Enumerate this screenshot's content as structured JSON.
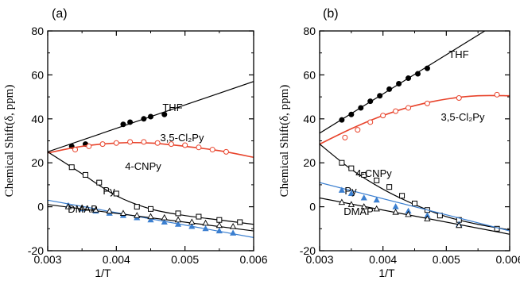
{
  "chart_data": [
    {
      "type": "scatter",
      "panel_label": "(a)",
      "xlabel": "1/T",
      "ylabel": "Chemical Shift(δ, ppm)",
      "xlim": [
        0.003,
        0.006
      ],
      "ylim": [
        -20,
        80
      ],
      "xticks": [
        "0.003",
        "0.004",
        "0.005",
        "0.006"
      ],
      "yticks": [
        "-20",
        "0",
        "20",
        "40",
        "60",
        "80"
      ],
      "series": [
        {
          "name": "THF",
          "color": "#000000",
          "marker": "filled-circle",
          "fit": "linear",
          "fit_line": [
            [
              0.003,
              25
            ],
            [
              0.006,
              57
            ]
          ],
          "points": [
            [
              0.00335,
              27.5
            ],
            [
              0.00355,
              28.5
            ],
            [
              0.0041,
              37.5
            ],
            [
              0.0042,
              38.5
            ],
            [
              0.0044,
              40
            ],
            [
              0.0045,
              41
            ],
            [
              0.0047,
              42
            ]
          ]
        },
        {
          "name": "3,5-Cl₂Py",
          "color": "#e8432b",
          "marker": "open-circle",
          "fit": "curve",
          "fit_line": [
            [
              0.003,
              24.5
            ],
            [
              0.0035,
              27.5
            ],
            [
              0.004,
              29
            ],
            [
              0.0045,
              29
            ],
            [
              0.005,
              27.5
            ],
            [
              0.0055,
              25.5
            ],
            [
              0.006,
              22.5
            ]
          ],
          "points": [
            [
              0.0034,
              26
            ],
            [
              0.0036,
              27.5
            ],
            [
              0.0038,
              28.5
            ],
            [
              0.004,
              29
            ],
            [
              0.0042,
              29.5
            ],
            [
              0.0044,
              29.5
            ],
            [
              0.0046,
              29
            ],
            [
              0.0048,
              28.5
            ],
            [
              0.005,
              28
            ],
            [
              0.0052,
              27
            ],
            [
              0.0054,
              26
            ],
            [
              0.0056,
              25
            ]
          ]
        },
        {
          "name": "4-CNPy",
          "color": "#000000",
          "marker": "open-square",
          "fit": "curve",
          "fit_line": [
            [
              0.003,
              25
            ],
            [
              0.0035,
              15
            ],
            [
              0.004,
              5
            ],
            [
              0.0045,
              -1
            ],
            [
              0.005,
              -4
            ],
            [
              0.0055,
              -6
            ],
            [
              0.006,
              -8
            ]
          ],
          "points": [
            [
              0.00335,
              18
            ],
            [
              0.00355,
              14.5
            ],
            [
              0.00375,
              11
            ],
            [
              0.004,
              6
            ],
            [
              0.0043,
              0
            ],
            [
              0.0045,
              -1
            ],
            [
              0.0049,
              -3
            ],
            [
              0.0052,
              -4.5
            ],
            [
              0.0055,
              -6
            ],
            [
              0.0058,
              -7
            ]
          ]
        },
        {
          "name": "Py",
          "color": "#3b7fd0",
          "marker": "filled-triangle",
          "fit": "linear",
          "fit_line": [
            [
              0.003,
              3
            ],
            [
              0.006,
              -14
            ]
          ],
          "points": [
            [
              0.0033,
              0.5
            ],
            [
              0.0035,
              -1
            ],
            [
              0.0037,
              -2
            ],
            [
              0.0039,
              -3
            ],
            [
              0.0041,
              -4
            ],
            [
              0.0043,
              -5
            ],
            [
              0.0045,
              -6
            ],
            [
              0.0047,
              -7
            ],
            [
              0.0049,
              -8
            ],
            [
              0.0051,
              -9
            ],
            [
              0.0053,
              -10
            ],
            [
              0.0055,
              -11
            ],
            [
              0.0057,
              -12
            ]
          ]
        },
        {
          "name": "DMAP",
          "color": "#000000",
          "marker": "open-triangle",
          "fit": "linear",
          "fit_line": [
            [
              0.003,
              1
            ],
            [
              0.006,
              -11
            ]
          ],
          "points": [
            [
              0.0033,
              0
            ],
            [
              0.0035,
              -0.5
            ],
            [
              0.0037,
              -1.5
            ],
            [
              0.0039,
              -2
            ],
            [
              0.0041,
              -3
            ],
            [
              0.0043,
              -4
            ],
            [
              0.0045,
              -4.5
            ],
            [
              0.0047,
              -5
            ],
            [
              0.0049,
              -6
            ],
            [
              0.0051,
              -7
            ],
            [
              0.0053,
              -7.5
            ],
            [
              0.0055,
              -8.5
            ],
            [
              0.0057,
              -9
            ]
          ]
        }
      ]
    },
    {
      "type": "scatter",
      "panel_label": "(b)",
      "xlabel": "1/T",
      "ylabel": "Chemical Shift(δ, ppm)",
      "xlim": [
        0.003,
        0.006
      ],
      "ylim": [
        -20,
        80
      ],
      "xticks": [
        "0.003",
        "0.004",
        "0.005",
        "0.006"
      ],
      "yticks": [
        "-20",
        "0",
        "20",
        "40",
        "60",
        "80"
      ],
      "series": [
        {
          "name": "THF",
          "color": "#000000",
          "marker": "filled-circle",
          "fit": "linear",
          "fit_line": [
            [
              0.003,
              33.5
            ],
            [
              0.006,
              87
            ]
          ],
          "points": [
            [
              0.00335,
              39.5
            ],
            [
              0.0035,
              42
            ],
            [
              0.00365,
              45
            ],
            [
              0.0038,
              48
            ],
            [
              0.00395,
              50.5
            ],
            [
              0.0041,
              53.5
            ],
            [
              0.00425,
              56
            ],
            [
              0.0044,
              58.5
            ],
            [
              0.00455,
              60.5
            ],
            [
              0.0047,
              63
            ]
          ]
        },
        {
          "name": "3,5-Cl₂Py",
          "color": "#e8432b",
          "marker": "open-circle",
          "fit": "curve",
          "fit_line": [
            [
              0.003,
              28.5
            ],
            [
              0.0035,
              35.5
            ],
            [
              0.004,
              41.5
            ],
            [
              0.0045,
              46
            ],
            [
              0.005,
              49
            ],
            [
              0.0055,
              50.5
            ],
            [
              0.006,
              50.5
            ]
          ],
          "points": [
            [
              0.0034,
              31.5
            ],
            [
              0.0036,
              35
            ],
            [
              0.0038,
              38.5
            ],
            [
              0.004,
              41.5
            ],
            [
              0.0042,
              43.5
            ],
            [
              0.0044,
              45
            ],
            [
              0.0047,
              47
            ],
            [
              0.0052,
              49.5
            ],
            [
              0.0058,
              51
            ]
          ]
        },
        {
          "name": "4-CNPy",
          "color": "#000000",
          "marker": "open-square",
          "fit": "curve",
          "fit_line": [
            [
              0.003,
              28.5
            ],
            [
              0.0035,
              17
            ],
            [
              0.004,
              8
            ],
            [
              0.0045,
              1
            ],
            [
              0.005,
              -4.5
            ],
            [
              0.0055,
              -8
            ],
            [
              0.006,
              -10.5
            ]
          ],
          "points": [
            [
              0.00335,
              20
            ],
            [
              0.0035,
              17.5
            ],
            [
              0.0037,
              14.5
            ],
            [
              0.0039,
              12
            ],
            [
              0.0041,
              9
            ],
            [
              0.0043,
              5
            ],
            [
              0.0045,
              1.5
            ],
            [
              0.0047,
              -1.5
            ],
            [
              0.0049,
              -4
            ],
            [
              0.0052,
              -6
            ],
            [
              0.0058,
              -10
            ]
          ]
        },
        {
          "name": "Py",
          "color": "#3b7fd0",
          "marker": "filled-triangle",
          "fit": "linear",
          "fit_line": [
            [
              0.003,
              11
            ],
            [
              0.006,
              -11
            ]
          ],
          "points": [
            [
              0.00335,
              7.5
            ],
            [
              0.0035,
              6
            ],
            [
              0.0037,
              4
            ],
            [
              0.0039,
              3
            ],
            [
              0.0042,
              0
            ],
            [
              0.0044,
              -2
            ],
            [
              0.0047,
              -4
            ],
            [
              0.0052,
              -8
            ]
          ]
        },
        {
          "name": "DMAP",
          "color": "#000000",
          "marker": "open-triangle",
          "fit": "linear",
          "fit_line": [
            [
              0.003,
              4
            ],
            [
              0.006,
              -12.5
            ]
          ],
          "points": [
            [
              0.00335,
              2
            ],
            [
              0.0035,
              1
            ],
            [
              0.0037,
              0
            ],
            [
              0.0039,
              -1
            ],
            [
              0.0042,
              -2.5
            ],
            [
              0.0044,
              -3.5
            ],
            [
              0.0047,
              -5.5
            ],
            [
              0.0052,
              -8.5
            ]
          ]
        }
      ]
    }
  ]
}
